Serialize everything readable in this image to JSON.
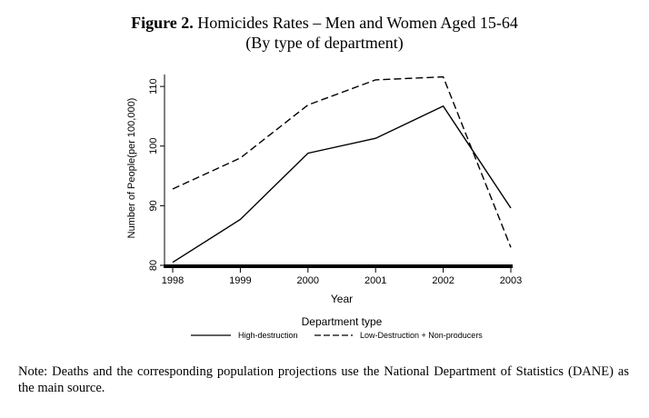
{
  "figure": {
    "label": "Figure 2.",
    "title": "Homicides Rates – Men and Women Aged 15-64",
    "subtitle": "(By type of department)"
  },
  "chart_data": {
    "type": "line",
    "x": [
      1998,
      1999,
      2000,
      2001,
      2002,
      2003
    ],
    "series": [
      {
        "name": "High-destruction",
        "style": "solid",
        "values": [
          80.5,
          87.7,
          98.8,
          101.3,
          106.7,
          89.6
        ]
      },
      {
        "name": "Low-Destruction + Non-producers",
        "style": "dashed",
        "values": [
          92.8,
          98.0,
          106.9,
          111.1,
          111.6,
          83.0
        ]
      }
    ],
    "xlabel": "Year",
    "ylabel": "Number of People(per 100,000)",
    "xlim": [
      1998,
      2003
    ],
    "ylim": [
      80,
      112
    ],
    "yticks": [
      80,
      90,
      100,
      110
    ],
    "xticks": [
      1998,
      1999,
      2000,
      2001,
      2002,
      2003
    ],
    "legend_title": "Department type",
    "legend_position": "bottom",
    "grid": false
  },
  "note": "Note: Deaths and the corresponding population projections use the National Department of Statistics (DANE) as the main source.",
  "colors": {
    "line": "#000000",
    "background": "#ffffff"
  }
}
